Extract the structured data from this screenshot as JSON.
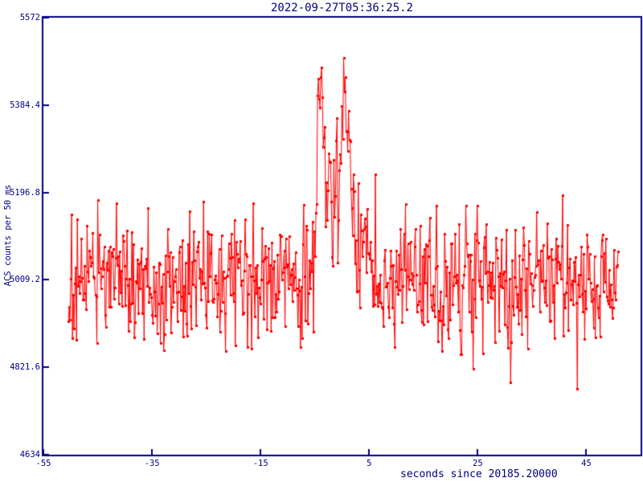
{
  "window": {
    "background_color": "#ffffff"
  },
  "chart_data": {
    "type": "line",
    "title": "2022-09-27T05:36:25.2",
    "xlabel": "seconds since 20185.20000",
    "ylabel": "ACS counts per 50 ms",
    "xlim": [
      -55,
      55
    ],
    "ylim": [
      4634,
      5572
    ],
    "xticks": [
      -55,
      -35,
      -15,
      5,
      25,
      45
    ],
    "yticks": [
      5572,
      5384.4,
      5196.8,
      5009.2,
      4821.6,
      4634
    ],
    "grid": false,
    "legend": false,
    "marker": "filled-square",
    "marker_size_px": 3,
    "line_color": "#ff0000",
    "axis_color": "#000080",
    "baseline_level": 5009,
    "noise_sigma": 74,
    "burst_peak_value": 5473,
    "burst_peak_time": -3.8,
    "second_peak_value": 5432,
    "second_peak_time": 0.3,
    "series_model": {
      "t_start": -50.4,
      "t_end": 50.85,
      "dt": 0.15,
      "baseline": 5009,
      "noise_sigma": 74,
      "seed": 20220927,
      "clamp_min": 4660,
      "clamp_max": 5505,
      "burst_envelope": [
        [
          -6.0,
          0
        ],
        [
          -5.2,
          40
        ],
        [
          -4.8,
          130
        ],
        [
          -4.4,
          260
        ],
        [
          -4.1,
          390
        ],
        [
          -3.8,
          462
        ],
        [
          -3.5,
          350
        ],
        [
          -3.1,
          280
        ],
        [
          -2.7,
          200
        ],
        [
          -2.2,
          140
        ],
        [
          -1.7,
          110
        ],
        [
          -1.2,
          125
        ],
        [
          -0.7,
          185
        ],
        [
          -0.3,
          260
        ],
        [
          0.0,
          330
        ],
        [
          0.3,
          422
        ],
        [
          0.6,
          330
        ],
        [
          1.0,
          265
        ],
        [
          1.5,
          205
        ],
        [
          2.0,
          150
        ],
        [
          2.5,
          110
        ],
        [
          3.0,
          75
        ],
        [
          3.6,
          50
        ],
        [
          4.2,
          38
        ],
        [
          5.0,
          28
        ],
        [
          6.0,
          18
        ],
        [
          7.0,
          8
        ],
        [
          8.0,
          0
        ]
      ]
    }
  }
}
